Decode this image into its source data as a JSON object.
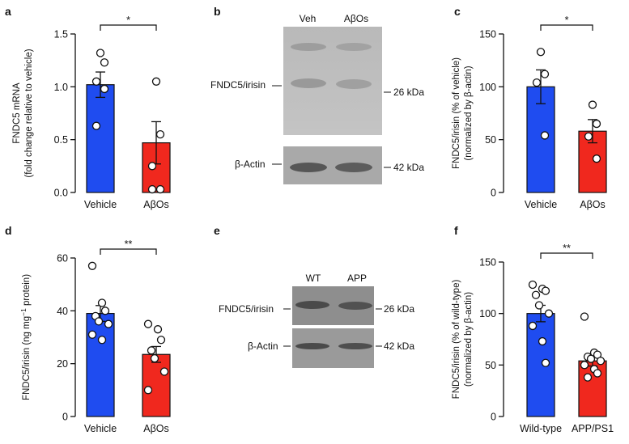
{
  "colors": {
    "vehicle": "#1f4cf0",
    "treated": "#f0281e",
    "axis": "#111111"
  },
  "panel_labels": [
    "a",
    "b",
    "c",
    "d",
    "e",
    "f"
  ],
  "blots": {
    "b": {
      "lanes": [
        "Veh",
        "AβOs"
      ],
      "bands": [
        {
          "left": "FNDC5/irisin",
          "right": "26 kDa"
        },
        {
          "left": "β-Actin",
          "right": "42 kDa"
        }
      ]
    },
    "e": {
      "lanes": [
        "WT",
        "APP"
      ],
      "bands": [
        {
          "left": "FNDC5/irisin",
          "right": "26 kDa"
        },
        {
          "left": "β-Actin",
          "right": "42 kDa"
        }
      ]
    }
  },
  "chart_data": [
    {
      "panel": "a",
      "type": "bar",
      "ylabel_lines": [
        "FNDC5 mRNA",
        "(fold change relative to vehicle)"
      ],
      "ylim": [
        0,
        1.5
      ],
      "yticks": [
        "0.0",
        "0.5",
        "1.0",
        "1.5"
      ],
      "ytick_values": [
        0,
        0.5,
        1.0,
        1.5
      ],
      "significance": "*",
      "categories": [
        "Vehicle",
        "AβOs"
      ],
      "means": [
        1.02,
        0.47
      ],
      "sem": [
        0.12,
        0.2
      ],
      "points": [
        [
          1.32,
          1.23,
          1.05,
          0.98,
          0.63
        ],
        [
          1.05,
          0.55,
          0.25,
          0.03,
          0.03
        ]
      ]
    },
    {
      "panel": "c",
      "type": "bar",
      "ylabel_lines": [
        "FNDC5/irisin (% of vehicle)",
        "(normalized by β-actin)"
      ],
      "ylim": [
        0,
        150
      ],
      "yticks": [
        "0",
        "50",
        "100",
        "150"
      ],
      "ytick_values": [
        0,
        50,
        100,
        150
      ],
      "significance": "*",
      "categories": [
        "Vehicle",
        "AβOs"
      ],
      "means": [
        100,
        58
      ],
      "sem": [
        16,
        11
      ],
      "points": [
        [
          133,
          112,
          104,
          54
        ],
        [
          83,
          65,
          53,
          32
        ]
      ]
    },
    {
      "panel": "d",
      "type": "bar",
      "ylabel_html": [
        "FNDC5/irisin (ng mg",
        "−1",
        " protein)"
      ],
      "ylim": [
        0,
        60
      ],
      "yticks": [
        "0",
        "20",
        "40",
        "60"
      ],
      "ytick_values": [
        0,
        20,
        40,
        60
      ],
      "significance": "**",
      "categories": [
        "Vehicle",
        "AβOs"
      ],
      "means": [
        39,
        23.5
      ],
      "sem": [
        3,
        3
      ],
      "points": [
        [
          57,
          43,
          40,
          38,
          36,
          35,
          31,
          29
        ],
        [
          35,
          33,
          29,
          25,
          22,
          17,
          10
        ]
      ]
    },
    {
      "panel": "f",
      "type": "bar",
      "ylabel_lines": [
        "FNDC5/irisin (% of wild-type)",
        "(normalized by β-actin)"
      ],
      "ylim": [
        0,
        150
      ],
      "yticks": [
        "0",
        "50",
        "100",
        "150"
      ],
      "ytick_values": [
        0,
        50,
        100,
        150
      ],
      "significance": "**",
      "categories": [
        "Wild-type",
        "APP/PS1"
      ],
      "means": [
        100,
        54
      ],
      "sem": [
        8,
        5
      ],
      "points": [
        [
          128,
          124,
          122,
          118,
          108,
          100,
          88,
          73,
          52
        ],
        [
          97,
          62,
          60,
          58,
          56,
          54,
          50,
          46,
          42,
          38
        ]
      ]
    }
  ]
}
